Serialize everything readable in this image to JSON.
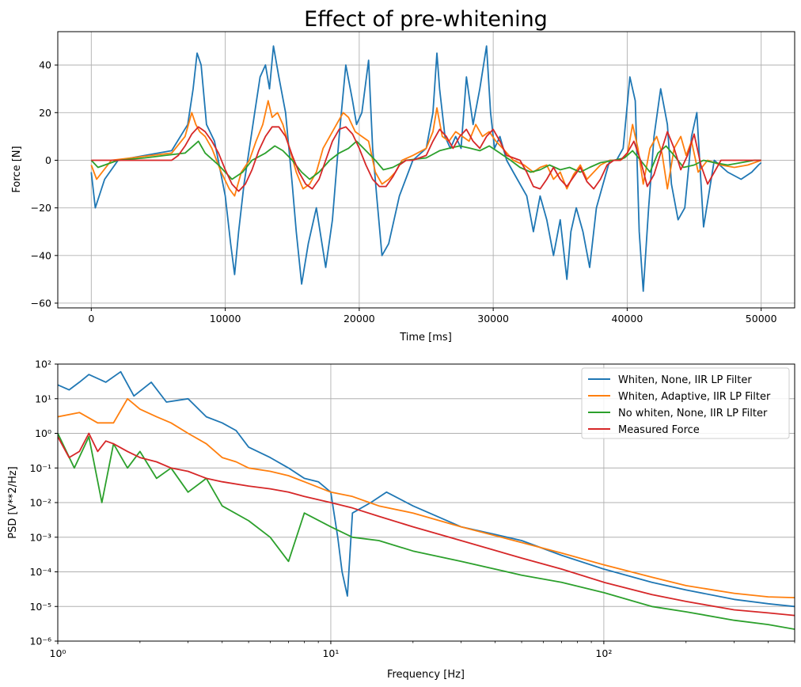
{
  "figure_title": "Effect of pre-whitening",
  "colors": {
    "blue": "#1f77b4",
    "orange": "#ff7f0e",
    "green": "#2ca02c",
    "red": "#d62728",
    "grid": "#b0b0b0"
  },
  "chart_data": [
    {
      "type": "line",
      "title": "Effect of pre-whitening",
      "xlabel": "Time [ms]",
      "ylabel": "Force [N]",
      "xlim": [
        -2500,
        52500
      ],
      "ylim": [
        -62,
        54
      ],
      "xticks": [
        0,
        10000,
        20000,
        30000,
        40000,
        50000
      ],
      "xtick_labels": [
        "0",
        "10000",
        "20000",
        "30000",
        "40000",
        "50000"
      ],
      "yticks": [
        -60,
        -40,
        -20,
        0,
        20,
        40
      ],
      "ytick_labels": [
        "−60",
        "−40",
        "−20",
        "0",
        "20",
        "40"
      ],
      "grid": true,
      "series": [
        {
          "color": "#1f77b4",
          "x": [
            0,
            300,
            1000,
            2000,
            4000,
            6000,
            7200,
            7600,
            7900,
            8200,
            8600,
            9200,
            10000,
            10400,
            10700,
            11000,
            11400,
            11800,
            12200,
            12600,
            13000,
            13300,
            13600,
            14000,
            14500,
            15000,
            15300,
            15700,
            16200,
            16800,
            17500,
            18000,
            18500,
            19000,
            19500,
            19800,
            20200,
            20700,
            21000,
            21300,
            21700,
            22200,
            23000,
            24000,
            25000,
            25500,
            25800,
            26000,
            26400,
            26800,
            27200,
            27600,
            28000,
            28500,
            29000,
            29500,
            29800,
            30100,
            30500,
            31000,
            31500,
            32500,
            33000,
            33500,
            34000,
            34500,
            35000,
            35500,
            35800,
            36200,
            36700,
            37200,
            37700,
            38200,
            38700,
            39200,
            39700,
            40200,
            40600,
            40900,
            41200,
            41600,
            42000,
            42500,
            43000,
            43300,
            43800,
            44300,
            44800,
            45200,
            45700,
            46500,
            47500,
            48500,
            49300,
            49800,
            50000
          ],
          "y": [
            -5,
            -20,
            -8,
            0,
            2,
            4,
            15,
            30,
            45,
            40,
            15,
            8,
            -15,
            -35,
            -48,
            -30,
            -10,
            5,
            20,
            35,
            40,
            30,
            48,
            35,
            20,
            -10,
            -30,
            -52,
            -35,
            -20,
            -45,
            -25,
            10,
            40,
            25,
            15,
            20,
            42,
            5,
            -15,
            -40,
            -35,
            -15,
            0,
            5,
            20,
            45,
            30,
            10,
            5,
            10,
            5,
            35,
            15,
            30,
            48,
            20,
            5,
            10,
            0,
            -5,
            -15,
            -30,
            -15,
            -25,
            -40,
            -25,
            -50,
            -30,
            -20,
            -30,
            -45,
            -20,
            -10,
            0,
            0,
            5,
            35,
            25,
            -30,
            -55,
            -20,
            10,
            30,
            15,
            -10,
            -25,
            -20,
            10,
            20,
            -28,
            0,
            -5,
            -8,
            -5,
            -2,
            -1
          ]
        },
        {
          "color": "#ff7f0e",
          "x": [
            0,
            400,
            1500,
            3000,
            4500,
            6000,
            7000,
            7500,
            7800,
            8100,
            8500,
            9000,
            9700,
            10300,
            10700,
            11200,
            11800,
            12300,
            12800,
            13200,
            13500,
            13900,
            14300,
            14800,
            15300,
            15800,
            16300,
            16800,
            17300,
            17800,
            18300,
            18800,
            19200,
            19700,
            20200,
            20700,
            21200,
            21700,
            22200,
            22700,
            23200,
            24000,
            25000,
            25500,
            25800,
            26200,
            26700,
            27200,
            27700,
            28200,
            28700,
            29200,
            29700,
            30200,
            30700,
            31500,
            32300,
            33000,
            33500,
            34000,
            34500,
            35000,
            35500,
            36000,
            36500,
            37000,
            37500,
            38000,
            38700,
            39500,
            40000,
            40400,
            40800,
            41200,
            41700,
            42200,
            42600,
            43000,
            43500,
            44000,
            44400,
            44800,
            45300,
            46000,
            47000,
            48000,
            49000,
            50000
          ],
          "y": [
            -2,
            -8,
            0,
            1,
            2,
            3,
            10,
            20,
            15,
            12,
            10,
            5,
            -5,
            -12,
            -15,
            -5,
            0,
            8,
            15,
            25,
            18,
            20,
            15,
            5,
            -5,
            -12,
            -10,
            -5,
            5,
            10,
            15,
            20,
            18,
            12,
            10,
            8,
            -5,
            -10,
            -8,
            -5,
            0,
            2,
            5,
            12,
            22,
            10,
            8,
            12,
            10,
            8,
            15,
            10,
            12,
            8,
            5,
            0,
            -2,
            -5,
            -3,
            -2,
            -8,
            -5,
            -12,
            -6,
            -2,
            -8,
            -5,
            -2,
            0,
            0,
            2,
            15,
            5,
            -10,
            5,
            10,
            3,
            -12,
            5,
            10,
            2,
            8,
            -5,
            0,
            -2,
            -3,
            -2,
            0
          ]
        },
        {
          "color": "#2ca02c",
          "x": [
            0,
            500,
            2000,
            4000,
            5500,
            7000,
            8000,
            8500,
            9500,
            10500,
            11300,
            12000,
            13000,
            13700,
            14300,
            15000,
            15700,
            16300,
            17000,
            17800,
            18500,
            19200,
            19800,
            20500,
            21200,
            21800,
            22500,
            23500,
            25000,
            26000,
            26700,
            27500,
            28300,
            29000,
            29700,
            30500,
            31300,
            32000,
            32800,
            33500,
            34200,
            35000,
            35700,
            36500,
            37200,
            38000,
            39000,
            39800,
            40400,
            41000,
            41700,
            42300,
            42900,
            43500,
            44200,
            45000,
            45700,
            46500,
            47500,
            48500,
            49500,
            50000
          ],
          "y": [
            0,
            -3,
            0,
            1,
            2,
            3,
            8,
            3,
            -2,
            -8,
            -5,
            0,
            3,
            6,
            4,
            0,
            -5,
            -8,
            -5,
            0,
            3,
            5,
            8,
            4,
            0,
            -4,
            -3,
            0,
            1,
            4,
            5,
            6,
            5,
            4,
            6,
            3,
            0,
            -3,
            -5,
            -4,
            -2,
            -4,
            -3,
            -5,
            -3,
            -1,
            0,
            1,
            4,
            0,
            -5,
            3,
            6,
            2,
            -3,
            -2,
            0,
            -1,
            -2,
            -1,
            0,
            0
          ]
        },
        {
          "color": "#d62728",
          "x": [
            0,
            6000,
            6500,
            7000,
            7500,
            8000,
            8500,
            9000,
            9500,
            10000,
            10500,
            11000,
            11500,
            12000,
            12500,
            13000,
            13500,
            14000,
            14500,
            15000,
            15500,
            16000,
            16500,
            17000,
            17500,
            18000,
            18500,
            19000,
            19500,
            20000,
            20500,
            21000,
            21500,
            22000,
            22500,
            23000,
            23500,
            24000,
            25000,
            25500,
            26000,
            26500,
            27000,
            27500,
            28000,
            28500,
            29000,
            29500,
            30000,
            30500,
            31000,
            32000,
            32500,
            33000,
            33500,
            34000,
            34500,
            35000,
            35500,
            36000,
            36500,
            37000,
            37500,
            38000,
            38500,
            39000,
            39500,
            40000,
            40500,
            41000,
            41500,
            42000,
            42500,
            43000,
            43500,
            44000,
            44500,
            45000,
            45500,
            46000,
            47000,
            50000
          ],
          "y": [
            0,
            0,
            2,
            6,
            11,
            14,
            12,
            8,
            3,
            -4,
            -10,
            -13,
            -10,
            -4,
            4,
            10,
            14,
            14,
            10,
            2,
            -5,
            -10,
            -12,
            -8,
            0,
            8,
            13,
            14,
            11,
            5,
            -2,
            -8,
            -11,
            -11,
            -7,
            -2,
            0,
            0,
            2,
            8,
            13,
            10,
            5,
            10,
            13,
            8,
            5,
            10,
            13,
            8,
            2,
            0,
            -5,
            -11,
            -12,
            -8,
            -3,
            -8,
            -11,
            -7,
            -3,
            -9,
            -12,
            -8,
            -2,
            0,
            0,
            3,
            8,
            0,
            -11,
            -6,
            3,
            12,
            5,
            -4,
            2,
            11,
            -2,
            -10,
            0,
            0
          ]
        }
      ]
    },
    {
      "type": "line",
      "title": "",
      "xlabel": "Frequency [Hz]",
      "ylabel": "PSD [V**2/Hz]",
      "xscale": "log",
      "yscale": "log",
      "xlim": [
        1,
        500
      ],
      "ylim": [
        1e-06,
        100
      ],
      "xticks": [
        1,
        10,
        100
      ],
      "xtick_labels": [
        "10⁰",
        "10¹",
        "10²"
      ],
      "yticks": [
        1e-06,
        1e-05,
        0.0001,
        0.001,
        0.01,
        0.1,
        1,
        10,
        100
      ],
      "ytick_labels": [
        "10⁻⁶",
        "10⁻⁵",
        "10⁻⁴",
        "10⁻³",
        "10⁻²",
        "10⁻¹",
        "10⁰",
        "10¹",
        "10²"
      ],
      "grid": true,
      "legend": "upper right",
      "series": [
        {
          "name": "Whiten, None, IIR LP Filter",
          "color": "#1f77b4",
          "x": [
            1,
            1.1,
            1.2,
            1.3,
            1.5,
            1.7,
            1.9,
            2.2,
            2.5,
            3,
            3.5,
            4,
            4.5,
            5,
            6,
            7,
            8,
            9,
            10,
            10.6,
            11,
            11.5,
            12,
            14,
            16,
            20,
            30,
            40,
            50,
            70,
            100,
            150,
            200,
            300,
            400,
            500
          ],
          "y": [
            25,
            18,
            30,
            50,
            30,
            60,
            12,
            30,
            8,
            10,
            3,
            2,
            1.2,
            0.4,
            0.2,
            0.1,
            0.05,
            0.04,
            0.02,
            0.001,
            0.0001,
            2e-05,
            0.005,
            0.01,
            0.02,
            0.008,
            0.002,
            0.0012,
            0.0008,
            0.0003,
            0.00012,
            5e-05,
            3e-05,
            1.6e-05,
            1.2e-05,
            1e-05
          ]
        },
        {
          "name": "Whiten, Adaptive, IIR LP Filter",
          "color": "#ff7f0e",
          "x": [
            1,
            1.2,
            1.4,
            1.6,
            1.8,
            2,
            2.3,
            2.6,
            3,
            3.5,
            4,
            4.5,
            5,
            6,
            7,
            8,
            10,
            12,
            15,
            20,
            30,
            50,
            70,
            100,
            150,
            200,
            300,
            400,
            500
          ],
          "y": [
            3,
            4,
            2,
            2,
            10,
            5,
            3,
            2,
            1,
            0.5,
            0.2,
            0.15,
            0.1,
            0.08,
            0.06,
            0.04,
            0.02,
            0.015,
            0.008,
            0.005,
            0.002,
            0.0007,
            0.00035,
            0.00016,
            7e-05,
            4e-05,
            2.4e-05,
            1.9e-05,
            1.8e-05
          ]
        },
        {
          "name": "No whiten, None, IIR LP Filter",
          "color": "#2ca02c",
          "x": [
            1,
            1.15,
            1.3,
            1.45,
            1.6,
            1.8,
            2,
            2.3,
            2.6,
            3,
            3.5,
            4,
            5,
            6,
            7,
            8,
            10,
            12,
            15,
            20,
            30,
            50,
            70,
            100,
            150,
            200,
            300,
            400,
            500
          ],
          "y": [
            1,
            0.1,
            0.8,
            0.01,
            0.5,
            0.1,
            0.3,
            0.05,
            0.1,
            0.02,
            0.05,
            0.008,
            0.003,
            0.001,
            0.0002,
            0.005,
            0.002,
            0.001,
            0.0008,
            0.0004,
            0.0002,
            8e-05,
            5e-05,
            2.5e-05,
            1e-05,
            7e-06,
            4e-06,
            3e-06,
            2.2e-06
          ]
        },
        {
          "name": "Measured Force",
          "color": "#d62728",
          "x": [
            1,
            1.1,
            1.2,
            1.3,
            1.4,
            1.5,
            1.6,
            1.8,
            2,
            2.3,
            2.6,
            3,
            3.5,
            4,
            5,
            6,
            7,
            8,
            10,
            12,
            15,
            20,
            30,
            50,
            70,
            100,
            150,
            200,
            300,
            400,
            500
          ],
          "y": [
            0.8,
            0.2,
            0.3,
            1,
            0.3,
            0.6,
            0.5,
            0.3,
            0.2,
            0.15,
            0.1,
            0.08,
            0.05,
            0.04,
            0.03,
            0.025,
            0.02,
            0.015,
            0.01,
            0.007,
            0.004,
            0.002,
            0.0008,
            0.00025,
            0.00012,
            5e-05,
            2.2e-05,
            1.4e-05,
            8e-06,
            6.5e-06,
            5.5e-06
          ]
        }
      ]
    }
  ]
}
